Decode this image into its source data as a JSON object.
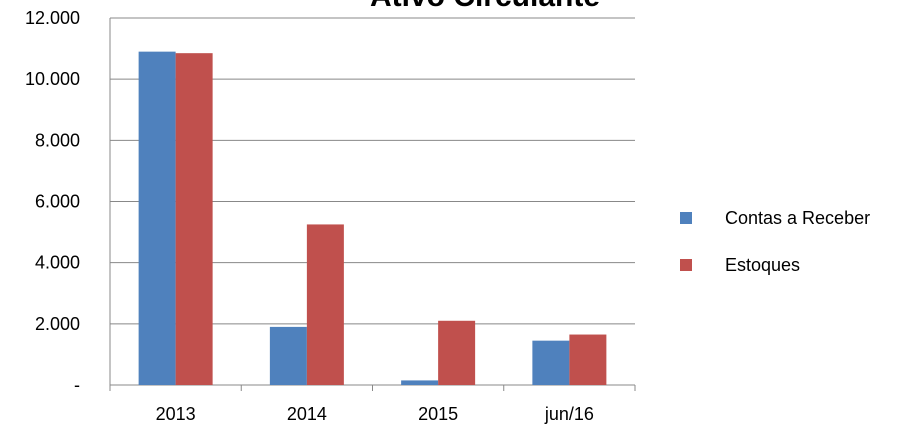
{
  "chart_data": {
    "type": "bar",
    "title": "Ativo Circulante",
    "categories": [
      "2013",
      "2014",
      "2015",
      "jun/16"
    ],
    "series": [
      {
        "name": "Contas a Receber",
        "color": "#4f81bd",
        "values": [
          10900,
          1900,
          150,
          1450
        ]
      },
      {
        "name": "Estoques",
        "color": "#c0504d",
        "values": [
          10850,
          5250,
          2100,
          1650
        ]
      }
    ],
    "ylim": [
      0,
      12000
    ],
    "yticks": [
      {
        "value": 0,
        "label": "-"
      },
      {
        "value": 2000,
        "label": "2.000"
      },
      {
        "value": 4000,
        "label": "4.000"
      },
      {
        "value": 6000,
        "label": "6.000"
      },
      {
        "value": 8000,
        "label": "8.000"
      },
      {
        "value": 10000,
        "label": "10.000"
      },
      {
        "value": 12000,
        "label": "12.000"
      }
    ],
    "grid": true,
    "legend": "right"
  }
}
